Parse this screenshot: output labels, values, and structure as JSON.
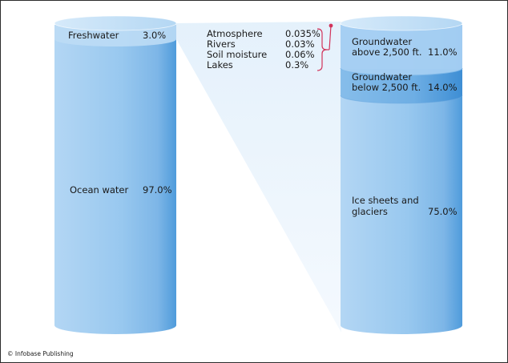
{
  "chart_data": {
    "type": "stacked-cylinder",
    "credit": "© Infobase Publishing",
    "total_water": [
      {
        "name": "Ocean water",
        "value_label": "97.0%",
        "value": 97.0
      },
      {
        "name": "Freshwater",
        "value_label": "3.0%",
        "value": 3.0
      }
    ],
    "freshwater_breakdown": [
      {
        "name": "Ice sheets and glaciers",
        "lines": [
          "Ice sheets and",
          "glaciers"
        ],
        "value_label": "75.0%",
        "value": 75.0
      },
      {
        "name": "Groundwater below 2,500 ft.",
        "lines": [
          "Groundwater",
          "below 2,500 ft."
        ],
        "value_label": "14.0%",
        "value": 14.0
      },
      {
        "name": "Groundwater above 2,500 ft.",
        "lines": [
          "Groundwater",
          "above 2,500 ft."
        ],
        "value_label": "11.0%",
        "value": 11.0
      }
    ],
    "small_components": [
      {
        "name": "Atmosphere",
        "value_label": "0.035%",
        "value": 0.035
      },
      {
        "name": "Rivers",
        "value_label": "0.03%",
        "value": 0.03
      },
      {
        "name": "Soil moisture",
        "value_label": "0.06%",
        "value": 0.06
      },
      {
        "name": "Lakes",
        "value_label": "0.3%",
        "value": 0.3
      }
    ],
    "colors": {
      "cylinder_light": "#a9d0f2",
      "cylinder_mid": "#8cc2ec",
      "cylinder_dark": "#5aa3de",
      "band_dark": "#3f8fd4",
      "top_cap": "#cfe6f8",
      "bracket": "#d2335a"
    }
  }
}
